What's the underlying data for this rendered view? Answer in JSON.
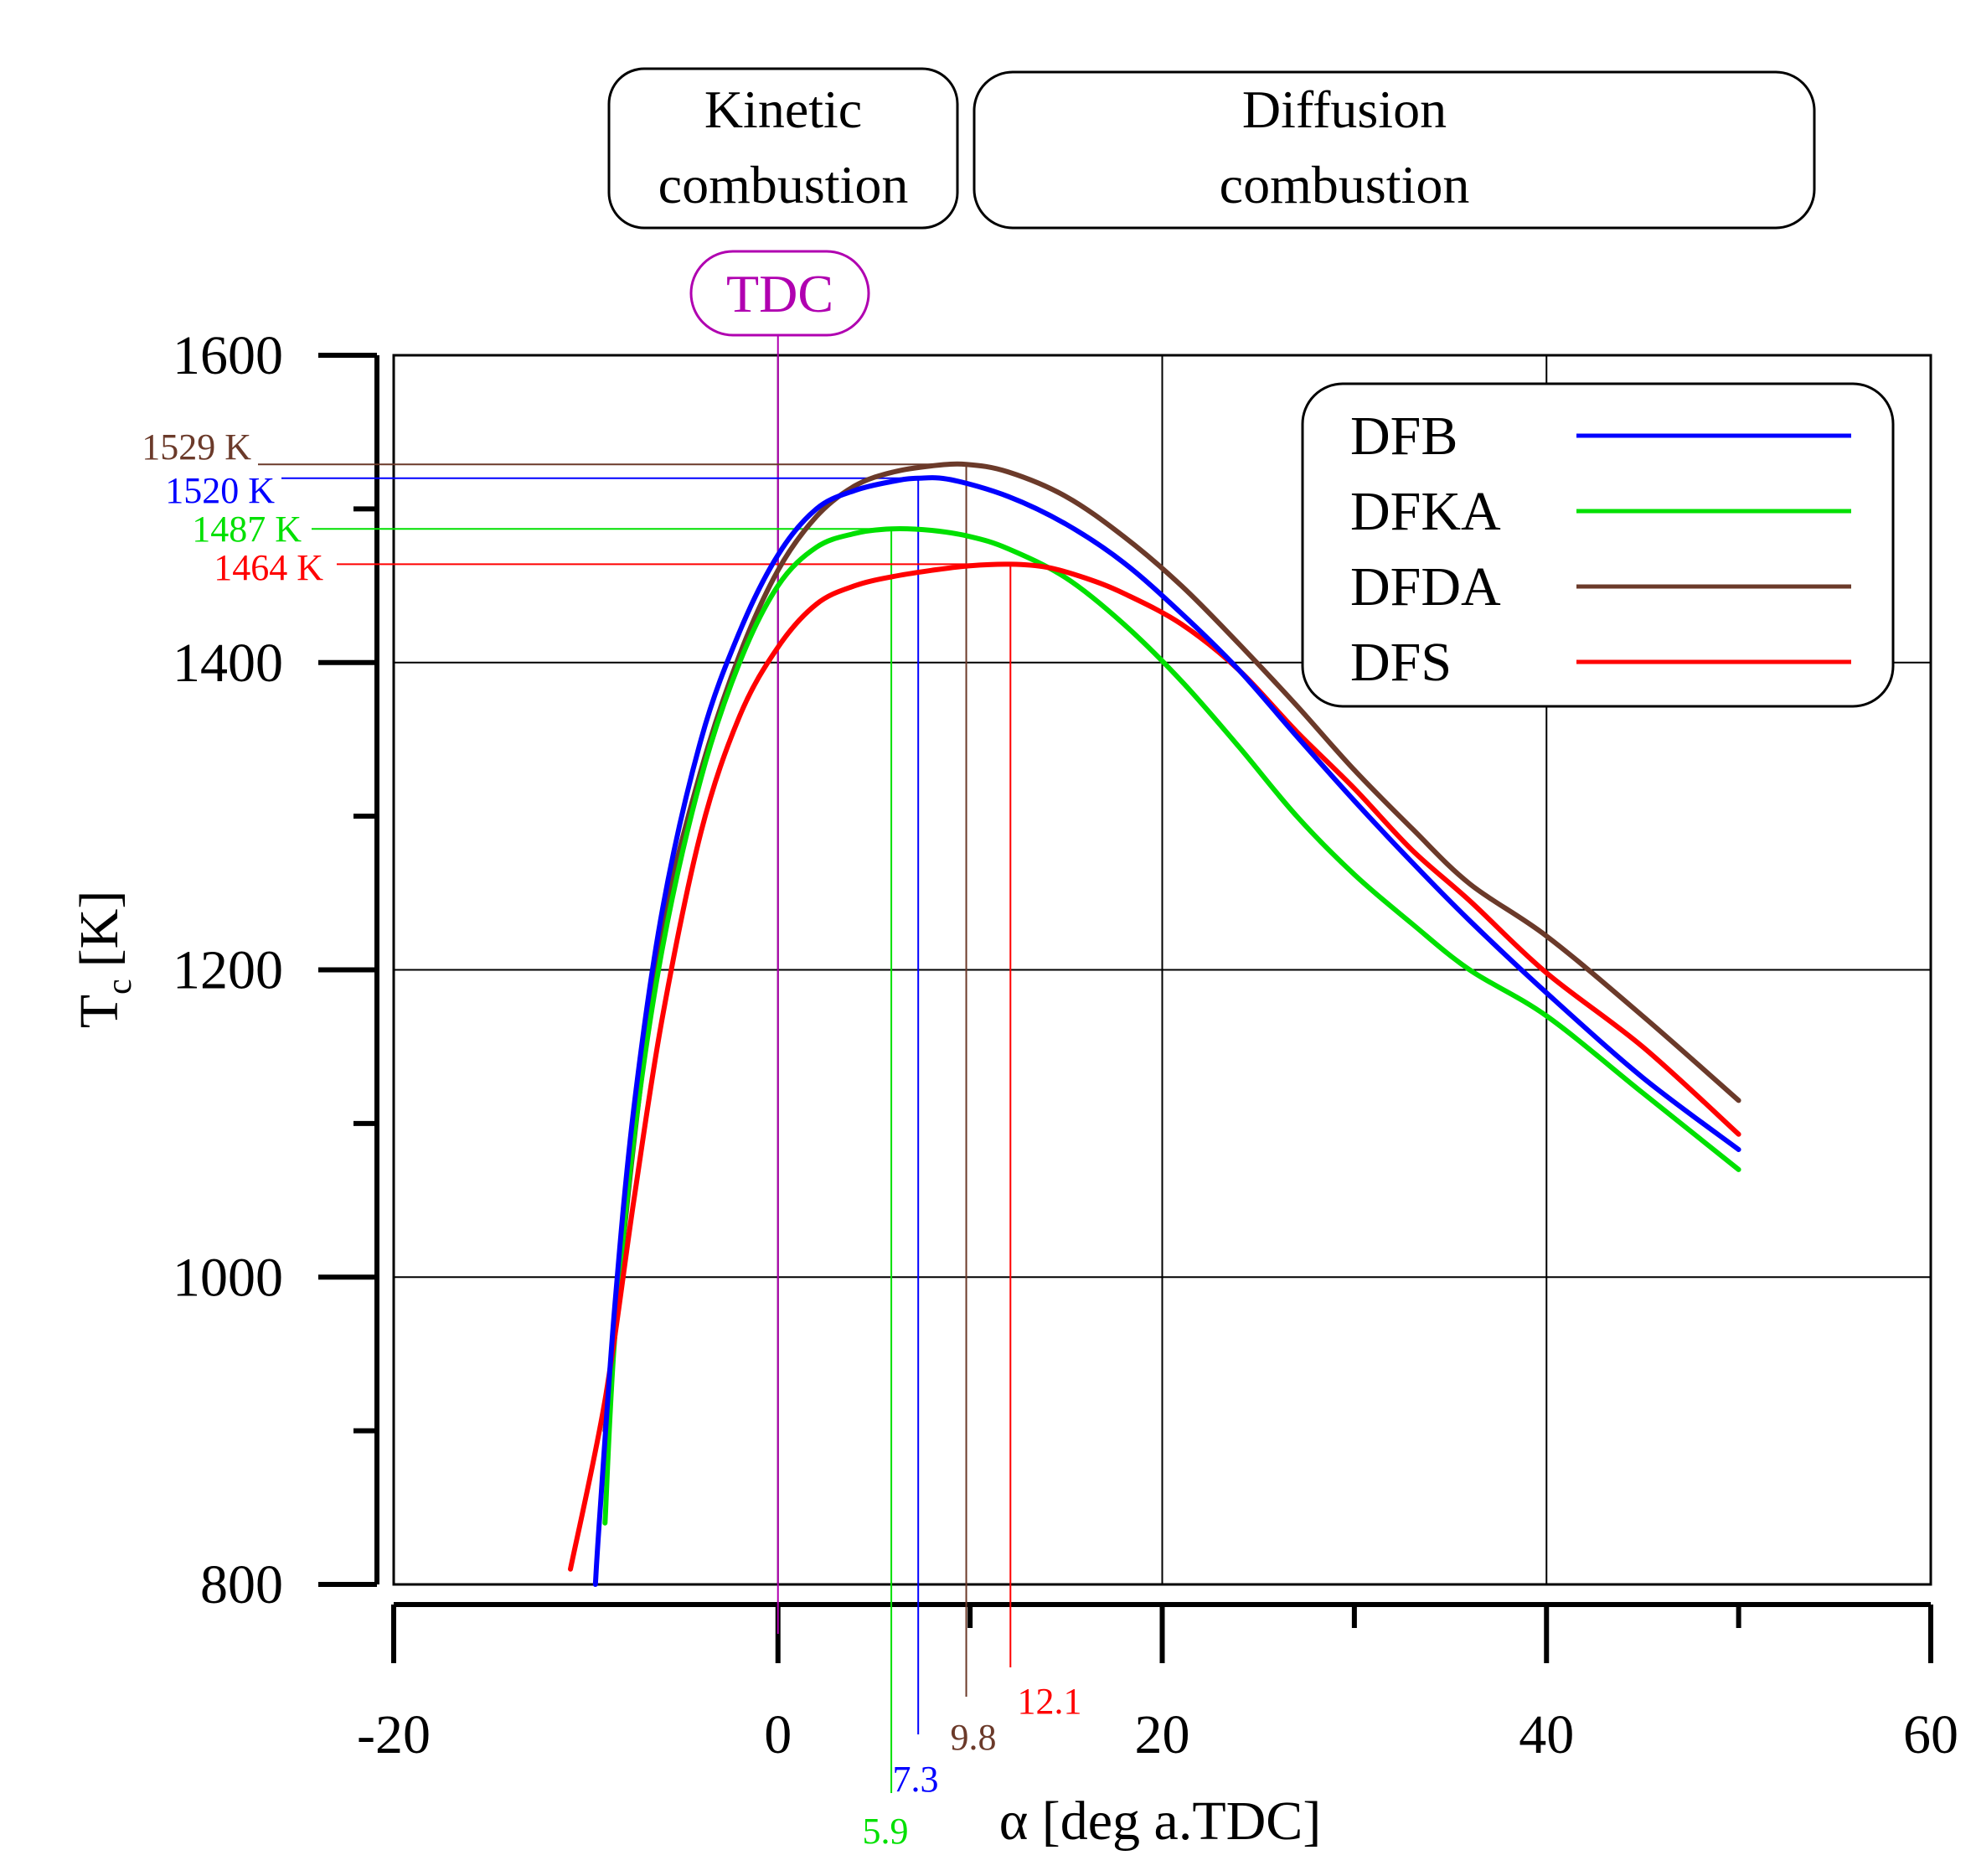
{
  "chart_data": {
    "type": "line",
    "title": "",
    "xlabel": "α [deg a.TDC]",
    "ylabel_main": "T",
    "ylabel_sub": "c",
    "ylabel_unit": "[K]",
    "xlim": [
      -20,
      60
    ],
    "ylim": [
      800,
      1600
    ],
    "x_ticks": [
      -20,
      0,
      20,
      40,
      60
    ],
    "y_ticks": [
      800,
      1000,
      1200,
      1400,
      1600
    ],
    "x_minor_ticks": [
      10,
      30,
      50
    ],
    "y_minor_ticks": [
      900,
      1100,
      1300,
      1500
    ],
    "x_grid": [
      0,
      20,
      40
    ],
    "y_grid": [
      1000,
      1200,
      1400
    ],
    "legend_position": "top-right",
    "series": [
      {
        "name": "DFB",
        "color": "#0000ff",
        "points": [
          [
            -9.5,
            800
          ],
          [
            -9.3,
            840
          ],
          [
            -8.5,
            980
          ],
          [
            -7.5,
            1110
          ],
          [
            -6,
            1240
          ],
          [
            -4,
            1350
          ],
          [
            -2,
            1420
          ],
          [
            0,
            1470
          ],
          [
            2,
            1500
          ],
          [
            4,
            1512
          ],
          [
            6,
            1518
          ],
          [
            7.3,
            1520
          ],
          [
            9,
            1519
          ],
          [
            12,
            1508
          ],
          [
            15,
            1490
          ],
          [
            18,
            1465
          ],
          [
            21,
            1432
          ],
          [
            24,
            1395
          ],
          [
            27,
            1352
          ],
          [
            30,
            1310
          ],
          [
            33,
            1270
          ],
          [
            36,
            1232
          ],
          [
            40,
            1185
          ],
          [
            45,
            1130
          ],
          [
            50,
            1083
          ]
        ]
      },
      {
        "name": "DFKA",
        "color": "#00e000",
        "points": [
          [
            -9,
            840
          ],
          [
            -8.5,
            960
          ],
          [
            -7.5,
            1090
          ],
          [
            -6,
            1215
          ],
          [
            -4,
            1325
          ],
          [
            -2,
            1400
          ],
          [
            0,
            1450
          ],
          [
            2,
            1475
          ],
          [
            4,
            1484
          ],
          [
            5.9,
            1487
          ],
          [
            8,
            1486
          ],
          [
            10,
            1482
          ],
          [
            12,
            1474
          ],
          [
            15,
            1455
          ],
          [
            18,
            1425
          ],
          [
            21,
            1388
          ],
          [
            24,
            1345
          ],
          [
            27,
            1300
          ],
          [
            30,
            1262
          ],
          [
            33,
            1230
          ],
          [
            36,
            1200
          ],
          [
            40,
            1170
          ],
          [
            45,
            1120
          ],
          [
            50,
            1070
          ]
        ]
      },
      {
        "name": "DFDA",
        "color": "#6b3a2a",
        "points": [
          [
            -9,
            900
          ],
          [
            -8,
            1030
          ],
          [
            -7,
            1140
          ],
          [
            -6,
            1230
          ],
          [
            -4,
            1330
          ],
          [
            -2,
            1405
          ],
          [
            0,
            1460
          ],
          [
            2,
            1495
          ],
          [
            4,
            1515
          ],
          [
            6,
            1524
          ],
          [
            8,
            1528
          ],
          [
            9.8,
            1529
          ],
          [
            12,
            1524
          ],
          [
            15,
            1508
          ],
          [
            18,
            1482
          ],
          [
            21,
            1450
          ],
          [
            24,
            1412
          ],
          [
            27,
            1372
          ],
          [
            30,
            1330
          ],
          [
            33,
            1292
          ],
          [
            36,
            1256
          ],
          [
            40,
            1222
          ],
          [
            45,
            1170
          ],
          [
            50,
            1115
          ]
        ]
      },
      {
        "name": "DFS",
        "color": "#ff0000",
        "points": [
          [
            -10.8,
            810
          ],
          [
            -9,
            920
          ],
          [
            -7.5,
            1050
          ],
          [
            -6,
            1170
          ],
          [
            -4,
            1290
          ],
          [
            -2,
            1365
          ],
          [
            0,
            1410
          ],
          [
            2,
            1438
          ],
          [
            4,
            1450
          ],
          [
            6,
            1456
          ],
          [
            8,
            1460
          ],
          [
            10,
            1463
          ],
          [
            12.1,
            1464
          ],
          [
            14,
            1462
          ],
          [
            16,
            1455
          ],
          [
            18,
            1445
          ],
          [
            21,
            1425
          ],
          [
            24,
            1395
          ],
          [
            27,
            1355
          ],
          [
            30,
            1318
          ],
          [
            33,
            1278
          ],
          [
            36,
            1245
          ],
          [
            40,
            1198
          ],
          [
            45,
            1150
          ],
          [
            50,
            1093
          ]
        ]
      }
    ],
    "peak_markers": [
      {
        "series": "DFDA",
        "x": 9.8,
        "y": 1529,
        "y_label": "1529 K",
        "x_label": "9.8",
        "color": "#6b3a2a"
      },
      {
        "series": "DFB",
        "x": 7.3,
        "y": 1520,
        "y_label": "1520 K",
        "x_label": "7.3",
        "color": "#0000ff"
      },
      {
        "series": "DFKA",
        "x": 5.9,
        "y": 1487,
        "y_label": "1487 K",
        "x_label": "5.9",
        "color": "#00e000"
      },
      {
        "series": "DFS",
        "x": 12.1,
        "y": 1464,
        "y_label": "1464 K",
        "x_label": "12.1",
        "color": "#ff0000"
      }
    ],
    "tdc": {
      "x": 0,
      "label": "TDC",
      "color": "#b000b0"
    },
    "phase_labels": [
      {
        "line1": "Kinetic",
        "line2": "combustion"
      },
      {
        "line1": "Diffusion",
        "line2": "combustion"
      }
    ]
  }
}
